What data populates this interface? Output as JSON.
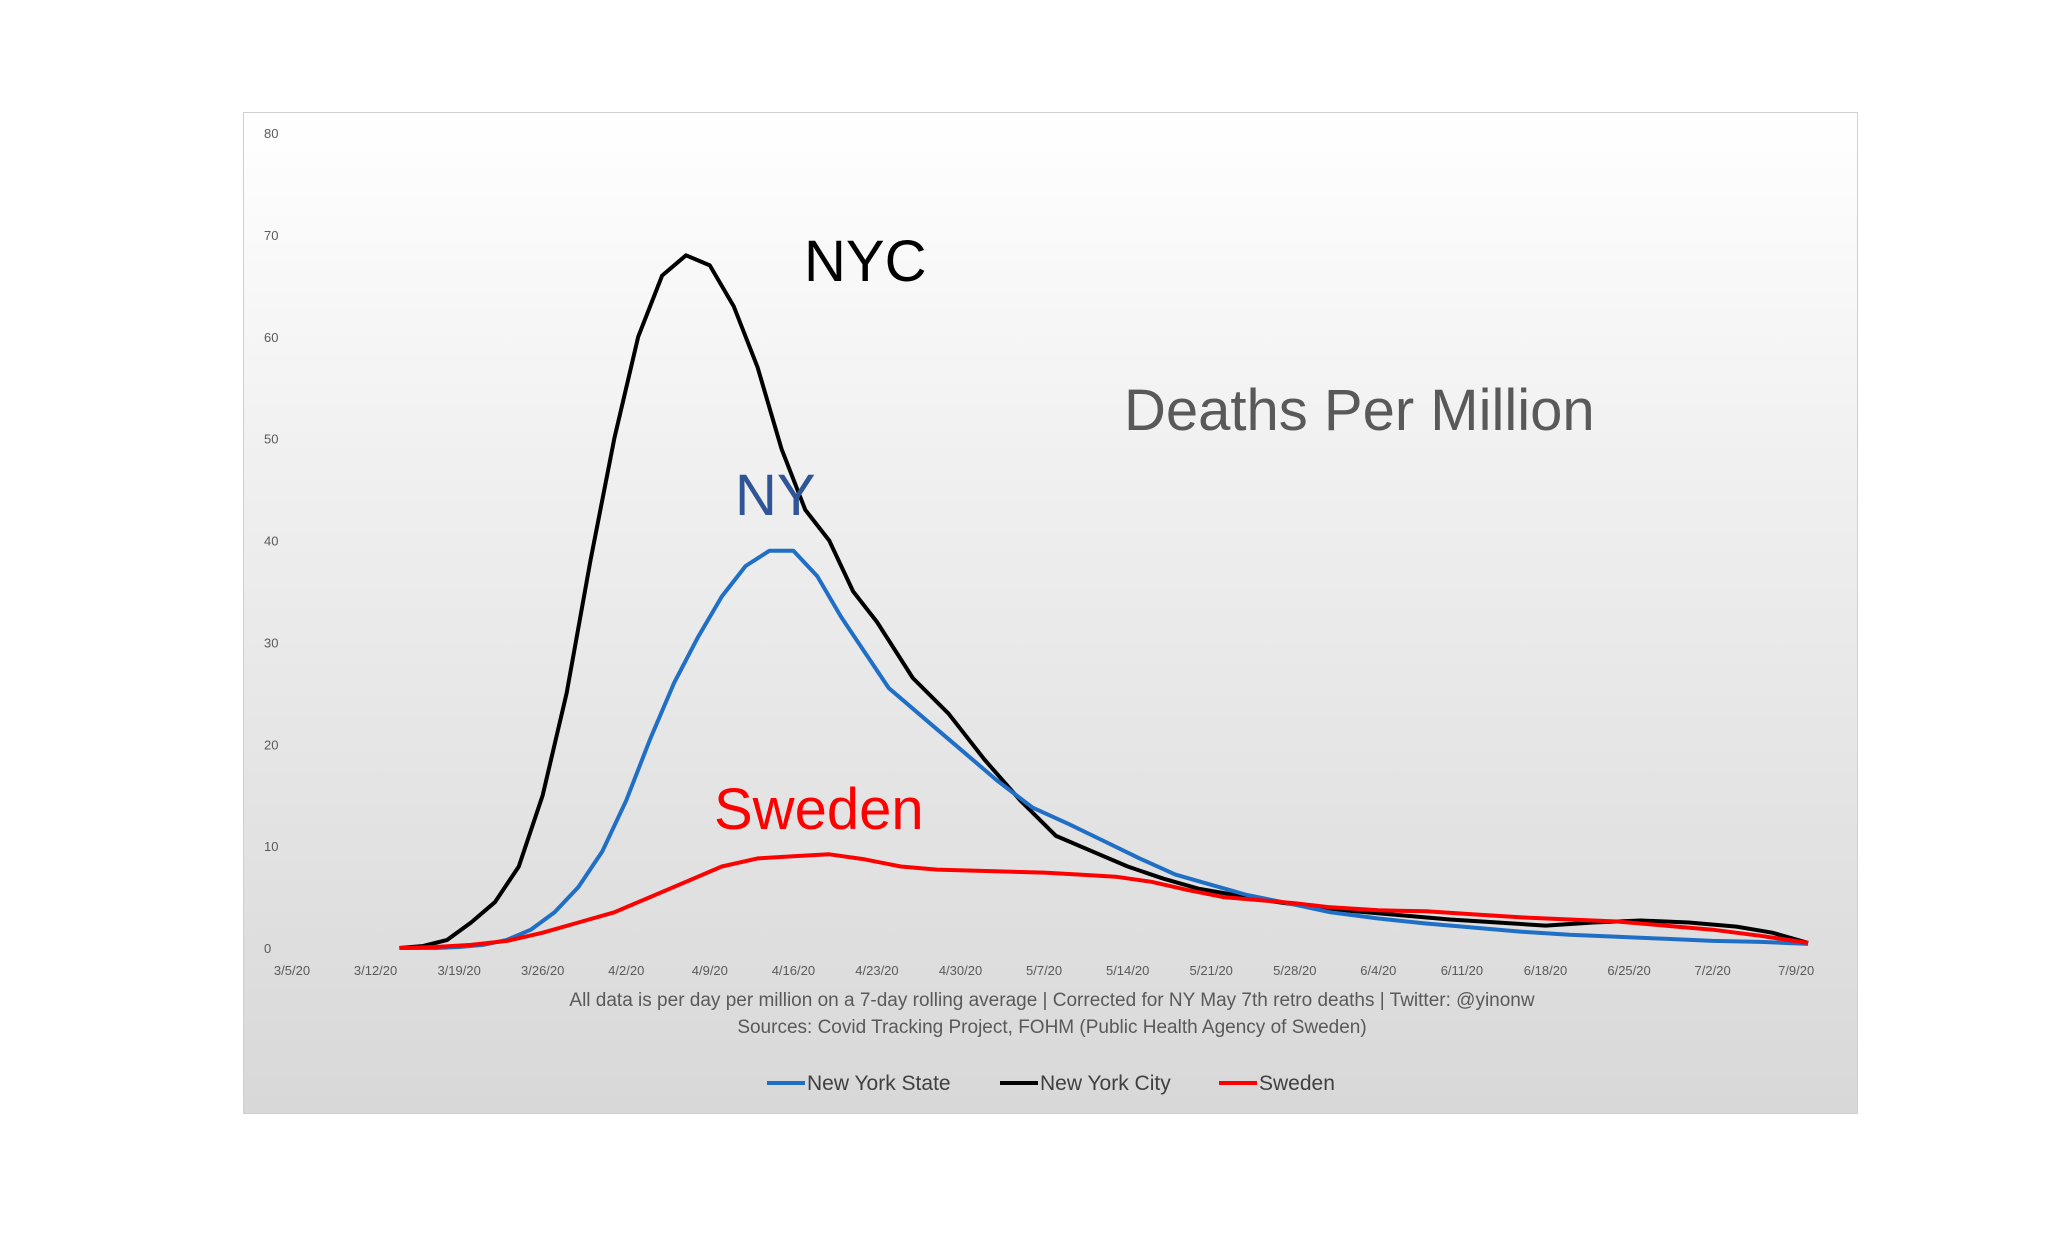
{
  "chart_data": {
    "type": "line",
    "title": "Deaths Per Million",
    "xlabel": "",
    "ylabel": "",
    "ylim": [
      0,
      80
    ],
    "yticks": [
      "0",
      "10",
      "20",
      "30",
      "40",
      "50",
      "60",
      "70",
      "80"
    ],
    "xticks": [
      "3/5/20",
      "3/12/20",
      "3/19/20",
      "3/26/20",
      "4/2/20",
      "4/9/20",
      "4/16/20",
      "4/23/20",
      "4/30/20",
      "5/7/20",
      "5/14/20",
      "5/21/20",
      "5/28/20",
      "6/4/20",
      "6/11/20",
      "6/18/20",
      "6/25/20",
      "7/2/20",
      "7/9/20"
    ],
    "grid": false,
    "legend_position": "bottom",
    "captions": [
      "All data is per day per million on a 7-day rolling average | Corrected for NY May 7th retro deaths | Twitter: @yinonw",
      "Sources: Covid Tracking Project, FOHM (Public Health Agency of Sweden)"
    ],
    "annotations": [
      {
        "text": "NYC",
        "color": "#000000"
      },
      {
        "text": "NY",
        "color": "#2f5597"
      },
      {
        "text": "Sweden",
        "color": "#ff0000"
      }
    ],
    "series": [
      {
        "name": "New York State",
        "color": "#1f6fc6",
        "x": [
          "3/14/20",
          "3/17/20",
          "3/19/20",
          "3/21/20",
          "3/23/20",
          "3/25/20",
          "3/27/20",
          "3/29/20",
          "3/31/20",
          "4/2/20",
          "4/4/20",
          "4/6/20",
          "4/8/20",
          "4/10/20",
          "4/12/20",
          "4/14/20",
          "4/16/20",
          "4/18/20",
          "4/20/20",
          "4/22/20",
          "4/24/20",
          "4/27/20",
          "4/30/20",
          "5/3/20",
          "5/6/20",
          "5/9/20",
          "5/12/20",
          "5/15/20",
          "5/18/20",
          "5/21/20",
          "5/24/20",
          "5/27/20",
          "5/31/20",
          "6/4/20",
          "6/8/20",
          "6/12/20",
          "6/16/20",
          "6/20/20",
          "6/24/20",
          "6/28/20",
          "7/2/20",
          "7/6/20",
          "7/8/20",
          "7/10/20"
        ],
        "values": [
          0,
          0,
          0.1,
          0.3,
          0.8,
          1.8,
          3.5,
          6,
          9.5,
          14.5,
          20.5,
          26,
          30.5,
          34.5,
          37.5,
          39,
          39,
          36.5,
          32.5,
          29,
          25.5,
          22.5,
          19.5,
          16.5,
          13.8,
          12.2,
          10.5,
          8.8,
          7.2,
          6.2,
          5.2,
          4.5,
          3.5,
          2.9,
          2.4,
          2.0,
          1.6,
          1.3,
          1.1,
          0.9,
          0.7,
          0.6,
          0.5,
          0.4
        ]
      },
      {
        "name": "New York City",
        "color": "#000000",
        "x": [
          "3/14/20",
          "3/16/20",
          "3/18/20",
          "3/20/20",
          "3/22/20",
          "3/24/20",
          "3/26/20",
          "3/28/20",
          "3/30/20",
          "4/1/20",
          "4/3/20",
          "4/5/20",
          "4/7/20",
          "4/9/20",
          "4/11/20",
          "4/13/20",
          "4/15/20",
          "4/17/20",
          "4/19/20",
          "4/21/20",
          "4/23/20",
          "4/26/20",
          "4/29/20",
          "5/2/20",
          "5/5/20",
          "5/8/20",
          "5/11/20",
          "5/14/20",
          "5/17/20",
          "5/20/20",
          "5/23/20",
          "5/26/20",
          "5/29/20",
          "6/2/20",
          "6/6/20",
          "6/10/20",
          "6/14/20",
          "6/18/20",
          "6/22/20",
          "6/26/20",
          "6/30/20",
          "7/4/20",
          "7/7/20",
          "7/10/20"
        ],
        "values": [
          0,
          0.2,
          0.8,
          2.5,
          4.5,
          8,
          15,
          25,
          38,
          50,
          60,
          66,
          68,
          67,
          63,
          57,
          49,
          43,
          40,
          35,
          32,
          26.5,
          23,
          18.5,
          14.5,
          11,
          9.5,
          8,
          6.8,
          5.8,
          5.2,
          4.6,
          4.1,
          3.6,
          3.2,
          2.8,
          2.5,
          2.2,
          2.5,
          2.7,
          2.5,
          2.1,
          1.5,
          0.5
        ]
      },
      {
        "name": "Sweden",
        "color": "#ff0000",
        "x": [
          "3/14/20",
          "3/17/20",
          "3/20/20",
          "3/23/20",
          "3/26/20",
          "3/29/20",
          "4/1/20",
          "4/4/20",
          "4/7/20",
          "4/10/20",
          "4/13/20",
          "4/16/20",
          "4/19/20",
          "4/22/20",
          "4/25/20",
          "4/28/20",
          "5/1/20",
          "5/4/20",
          "5/7/20",
          "5/10/20",
          "5/13/20",
          "5/16/20",
          "5/19/20",
          "5/22/20",
          "5/25/20",
          "5/28/20",
          "5/31/20",
          "6/4/20",
          "6/8/20",
          "6/12/20",
          "6/16/20",
          "6/20/20",
          "6/24/20",
          "6/28/20",
          "7/2/20",
          "7/6/20",
          "7/10/20"
        ],
        "values": [
          0,
          0.1,
          0.3,
          0.7,
          1.5,
          2.5,
          3.5,
          5,
          6.5,
          8,
          8.8,
          9,
          9.2,
          8.7,
          8,
          7.7,
          7.6,
          7.5,
          7.4,
          7.2,
          7.0,
          6.5,
          5.7,
          5.0,
          4.7,
          4.4,
          4.0,
          3.7,
          3.6,
          3.3,
          3.0,
          2.8,
          2.6,
          2.2,
          1.8,
          1.2,
          0.5
        ]
      }
    ]
  }
}
